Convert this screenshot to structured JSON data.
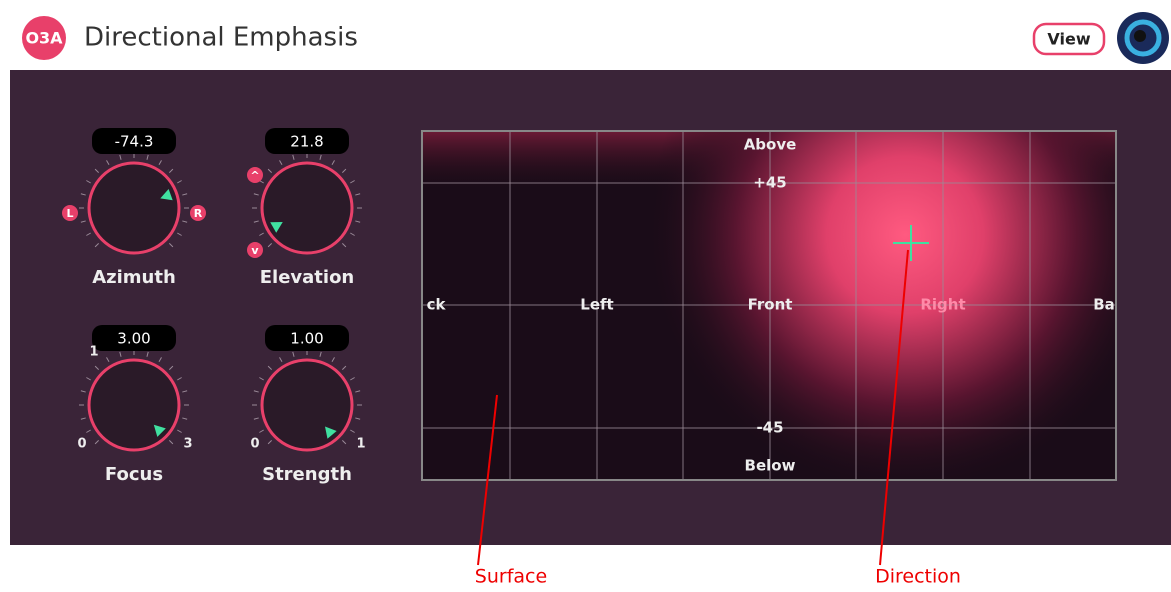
{
  "header": {
    "badge": "O3A",
    "title": "Directional Emphasis",
    "button": "View"
  },
  "controls": [
    {
      "value": "-74.3",
      "label": "Azimuth",
      "min_label": "L",
      "max_label": "R"
    },
    {
      "value": "21.8",
      "label": "Elevation",
      "min_label": "^",
      "max_label": "v"
    },
    {
      "value": "3.00",
      "label": "Focus",
      "min_label": "0",
      "max_label": "3",
      "mid_label": "1"
    },
    {
      "value": "1.00",
      "label": "Strength",
      "min_label": "0",
      "max_label": "1"
    }
  ],
  "surface": {
    "top": "Above",
    "upper": "+45",
    "lower": "-45",
    "bottom": "Below",
    "horizon": [
      "ck",
      "Left",
      "Front",
      "Right",
      "Ba"
    ]
  },
  "annotations": {
    "surface": "Surface",
    "direction": "Direction"
  }
}
